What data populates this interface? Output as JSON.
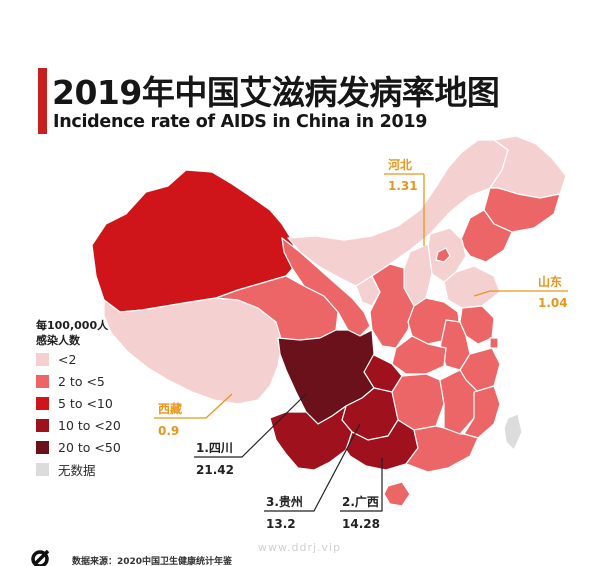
{
  "title": {
    "cn": "2019年中国艾滋病发病率地图",
    "en": "Incidence rate of AIDS in China in 2019"
  },
  "legend": {
    "title_line1": "每100,000人",
    "title_line2": "感染人数",
    "items": [
      {
        "label": "<2",
        "color": "#f5d0d1"
      },
      {
        "label": "2 to <5",
        "color": "#ec6667"
      },
      {
        "label": "5 to <10",
        "color": "#d0151a"
      },
      {
        "label": "10 to <20",
        "color": "#a0111e"
      },
      {
        "label": "20 to <50",
        "color": "#6b111c"
      },
      {
        "label": "无数据",
        "color": "#dcdcdc"
      }
    ]
  },
  "callouts": {
    "hebei": {
      "name": "河北",
      "value": "1.31"
    },
    "shandong": {
      "name": "山东",
      "value": "1.04"
    },
    "xizang": {
      "name": "西藏",
      "value": "0.9"
    }
  },
  "ranks": {
    "sichuan": {
      "name": "1.四川",
      "value": "21.42"
    },
    "guizhou": {
      "name": "3.贵州",
      "value": "13.2"
    },
    "guangxi": {
      "name": "2.广西",
      "value": "14.28"
    }
  },
  "footer": {
    "source": "数据来源：2020中国卫生健康统计年鉴",
    "watermark": "www.ddrj.vip"
  }
}
